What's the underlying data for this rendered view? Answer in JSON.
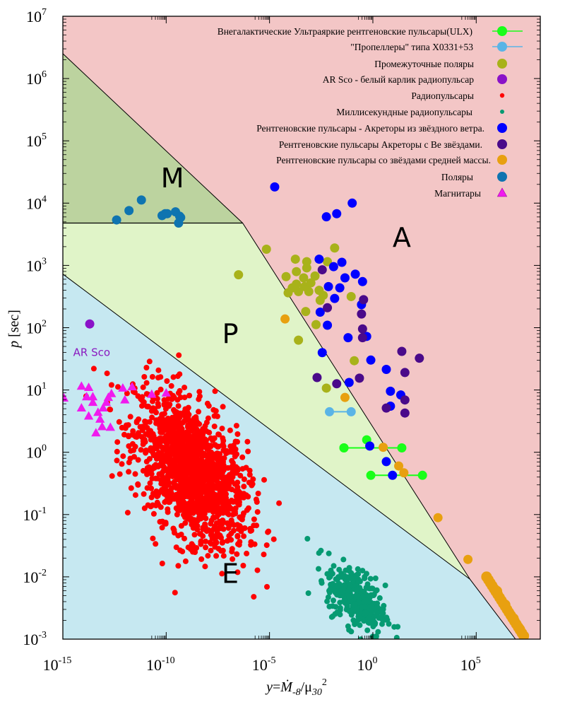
{
  "chart_data": {
    "type": "scatter",
    "title": "",
    "xlabel": "y=Ṁ-8/μ30²",
    "xlabel_parts": {
      "var": "y",
      "eq": "=",
      "mdot": "Ṁ",
      "sub1": "-8",
      "slash": "/",
      "mu": "μ",
      "sub2": "30",
      "sup": "2"
    },
    "ylabel": "p [sec]",
    "ylabel_parts": {
      "var": "p",
      "unit": " [sec]"
    },
    "xscale": "log",
    "yscale": "log",
    "xlim_log10": [
      -15,
      8.1
    ],
    "ylim_log10": [
      -3,
      7
    ],
    "x_ticks": [
      {
        "base": "10",
        "exp": "-15",
        "log10": -15
      },
      {
        "base": "10",
        "exp": "-10",
        "log10": -10
      },
      {
        "base": "10",
        "exp": "-5",
        "log10": -5
      },
      {
        "base": "10",
        "exp": "0",
        "log10": 0
      },
      {
        "base": "10",
        "exp": "5",
        "log10": 5
      }
    ],
    "y_ticks": [
      {
        "base": "10",
        "exp": "-3",
        "log10": -3
      },
      {
        "base": "10",
        "exp": "-2",
        "log10": -2
      },
      {
        "base": "10",
        "exp": "-1",
        "log10": -1
      },
      {
        "base": "10",
        "exp": "0",
        "log10": 0
      },
      {
        "base": "10",
        "exp": "1",
        "log10": 1
      },
      {
        "base": "10",
        "exp": "2",
        "log10": 2
      },
      {
        "base": "10",
        "exp": "3",
        "log10": 3
      },
      {
        "base": "10",
        "exp": "4",
        "log10": 4
      },
      {
        "base": "10",
        "exp": "5",
        "log10": 5
      },
      {
        "base": "10",
        "exp": "6",
        "log10": 6
      },
      {
        "base": "10",
        "exp": "7",
        "log10": 7
      }
    ],
    "grid": false,
    "legend_placement": "top-right",
    "regions": [
      {
        "label": "M",
        "name": "magnetic-inhibition",
        "color": "#bcd39f",
        "label_at_log10": [
          -9.7,
          4.4
        ]
      },
      {
        "label": "P",
        "name": "propeller",
        "color": "#e0f4c8",
        "label_at_log10": [
          -6.9,
          1.9
        ]
      },
      {
        "label": "A",
        "name": "accretor",
        "color": "#f3c6c6",
        "label_at_log10": [
          1.4,
          3.45
        ]
      },
      {
        "label": "E",
        "name": "ejector",
        "color": "#c6e8f1",
        "label_at_log10": [
          -6.9,
          -1.95
        ]
      }
    ],
    "boundaries": {
      "upper_line_log10": [
        [
          -15,
          6.4
        ],
        [
          -6.3,
          3.68
        ],
        [
          4.7,
          -2.04
        ]
      ],
      "lower_line_log10": [
        [
          -15,
          2.86
        ],
        [
          4.7,
          -2.04
        ],
        [
          6.9,
          -3
        ]
      ],
      "m_line_log10": [
        [
          -15,
          3.68
        ],
        [
          -6.3,
          3.68
        ]
      ]
    },
    "annotations": [
      {
        "text": "AR Sco",
        "at_log10": [
          -14.5,
          1.6
        ],
        "color": "#8a1ac0"
      }
    ],
    "series": [
      {
        "name": "Внегалактические Ультраяркие рентгеновские пульсары(ULX)",
        "key": "ulx",
        "color": "#19ff19",
        "marker": "circle-line",
        "points_log10": [
          [
            -1.4,
            0.07
          ],
          [
            -0.3,
            0.2
          ]
        ],
        "segments_log10": [
          [
            [
              -1.4,
              0.07
            ],
            [
              1.4,
              0.07
            ]
          ],
          [
            [
              -0.1,
              -0.37
            ],
            [
              2.4,
              -0.37
            ]
          ]
        ]
      },
      {
        "name": "\"Пропеллеры\" типа  X0331+53",
        "key": "propeller",
        "color": "#5ab4e6",
        "marker": "circle-line",
        "points_log10": [],
        "segments_log10": [
          [
            [
              -2.1,
              0.65
            ],
            [
              -1.05,
              0.65
            ]
          ]
        ]
      },
      {
        "name": "Промежуточные поляры",
        "key": "ip",
        "color": "#a8b21a",
        "marker": "circle",
        "points_log10": [
          [
            -5.15,
            3.26
          ],
          [
            -1.85,
            3.28
          ],
          [
            -6.5,
            2.85
          ],
          [
            -3.75,
            3.1
          ],
          [
            -3.2,
            3.06
          ],
          [
            -2.2,
            3.06
          ],
          [
            -3.7,
            2.9
          ],
          [
            -3.2,
            2.96
          ],
          [
            -4.2,
            2.82
          ],
          [
            -2.8,
            2.83
          ],
          [
            -3.35,
            2.8
          ],
          [
            -3.7,
            2.7
          ],
          [
            -3.3,
            2.66
          ],
          [
            -3.0,
            2.72
          ],
          [
            -3.9,
            2.64
          ],
          [
            -4.1,
            2.56
          ],
          [
            -3.6,
            2.58
          ],
          [
            -3.1,
            2.58
          ],
          [
            -2.6,
            2.6
          ],
          [
            -2.4,
            2.52
          ],
          [
            -1.05,
            2.5
          ],
          [
            -2.55,
            2.44
          ],
          [
            -3.25,
            2.26
          ],
          [
            -2.75,
            2.05
          ],
          [
            -3.6,
            1.8
          ],
          [
            -0.9,
            1.47
          ],
          [
            -2.25,
            1.03
          ]
        ]
      },
      {
        "name": "AR Sco - белый карлик радиопульсар",
        "key": "arsco",
        "color": "#8a12c8",
        "marker": "circle",
        "points_log10": [
          [
            -13.7,
            2.06
          ]
        ]
      },
      {
        "name": "Радиопульсары",
        "key": "radio",
        "color": "#ff0000",
        "marker": "small-dot",
        "cluster": {
          "center_log10": [
            -8.8,
            -0.3
          ],
          "spread_log10": [
            1.35,
            0.55
          ],
          "count": 1500
        }
      },
      {
        "name": "Миллисекундные радиопульсары",
        "key": "msp",
        "color": "#069a72",
        "marker": "small-dot",
        "cluster": {
          "center_log10": [
            -0.8,
            -2.35
          ],
          "spread_log10": [
            0.7,
            0.25
          ],
          "count": 320
        }
      },
      {
        "name": "Рентгеновские пульсары - Акреторы из звёздного ветра.",
        "key": "wind",
        "color": "#0000ff",
        "marker": "circle",
        "points_log10": [
          [
            -4.75,
            4.26
          ],
          [
            -1.0,
            4.0
          ],
          [
            -2.25,
            3.78
          ],
          [
            -1.75,
            3.83
          ],
          [
            -2.6,
            3.1
          ],
          [
            -1.9,
            2.98
          ],
          [
            -1.5,
            3.05
          ],
          [
            -1.35,
            2.8
          ],
          [
            -0.85,
            2.86
          ],
          [
            -0.5,
            2.74
          ],
          [
            -2.15,
            2.66
          ],
          [
            -1.6,
            2.64
          ],
          [
            -1.85,
            2.47
          ],
          [
            -0.55,
            2.37
          ],
          [
            -2.55,
            2.25
          ],
          [
            -2.2,
            2.04
          ],
          [
            -1.2,
            1.84
          ],
          [
            -0.3,
            1.86
          ],
          [
            -2.45,
            1.6
          ],
          [
            -0.1,
            1.48
          ],
          [
            0.65,
            1.33
          ],
          [
            -1.15,
            1.12
          ],
          [
            0.85,
            0.98
          ],
          [
            1.35,
            0.92
          ],
          [
            0.85,
            0.74
          ],
          [
            -0.15,
            0.1
          ],
          [
            0.65,
            -0.15
          ],
          [
            0.95,
            -0.37
          ]
        ]
      },
      {
        "name": "Рентгеновские пульсары Акреторы с Ве звёздами.",
        "key": "be",
        "color": "#4a0a8a",
        "marker": "circle",
        "points_log10": [
          [
            -2.45,
            2.93
          ],
          [
            -0.45,
            2.45
          ],
          [
            -2.2,
            2.32
          ],
          [
            -0.55,
            2.22
          ],
          [
            -0.5,
            1.98
          ],
          [
            -0.5,
            1.84
          ],
          [
            1.4,
            1.62
          ],
          [
            2.25,
            1.51
          ],
          [
            1.55,
            1.28
          ],
          [
            -2.7,
            1.2
          ],
          [
            -1.75,
            1.1
          ],
          [
            -0.65,
            1.19
          ],
          [
            0.65,
            0.71
          ],
          [
            1.55,
            0.63
          ],
          [
            1.55,
            0.84
          ]
        ]
      },
      {
        "name": "Рентгеновские пульсары со звёздами средней массы.",
        "key": "intermediate",
        "color": "#e8a010",
        "marker": "circle",
        "points_log10": [
          [
            -4.25,
            2.14
          ],
          [
            -1.35,
            0.88
          ],
          [
            0.5,
            0.08
          ],
          [
            1.25,
            -0.22
          ],
          [
            1.5,
            -0.33
          ],
          [
            3.15,
            -1.05
          ],
          [
            4.6,
            -1.72
          ],
          [
            5.5,
            -2.0
          ],
          [
            6.0,
            -2.23
          ],
          [
            6.4,
            -2.45
          ],
          [
            6.8,
            -2.67
          ],
          [
            7.1,
            -2.84
          ],
          [
            7.3,
            -2.95
          ]
        ]
      },
      {
        "name": "Поляры",
        "key": "polar",
        "color": "#0f74b0",
        "marker": "circle",
        "points_log10": [
          [
            -12.4,
            3.73
          ],
          [
            -11.8,
            3.88
          ],
          [
            -11.2,
            4.05
          ],
          [
            -10.2,
            3.8
          ],
          [
            -10.05,
            3.83
          ],
          [
            -9.95,
            3.83
          ],
          [
            -9.55,
            3.86
          ],
          [
            -9.35,
            3.79
          ],
          [
            -9.4,
            3.68
          ],
          [
            -9.3,
            3.77
          ]
        ]
      },
      {
        "name": "Магнитары",
        "key": "magnetar",
        "color": "#f01aee",
        "marker": "triangle",
        "points_log10": [
          [
            -14.95,
            0.87
          ],
          [
            -14.1,
            1.06
          ],
          [
            -13.75,
            1.04
          ],
          [
            -13.85,
            0.89
          ],
          [
            -13.55,
            0.89
          ],
          [
            -13.55,
            0.8
          ],
          [
            -14.1,
            0.71
          ],
          [
            -13.75,
            0.58
          ],
          [
            -13.3,
            0.64
          ],
          [
            -13.05,
            0.71
          ],
          [
            -12.9,
            0.8
          ],
          [
            -12.8,
            0.88
          ],
          [
            -12.65,
            0.94
          ],
          [
            -12.1,
            1.03
          ],
          [
            -11.65,
            1.05
          ],
          [
            -12.0,
            0.84
          ],
          [
            -10.7,
            0.93
          ],
          [
            -10.0,
            0.95
          ],
          [
            -13.4,
            0.31
          ],
          [
            -13.1,
            0.41
          ],
          [
            -12.7,
            0.4
          ],
          [
            -13.2,
            0.53
          ]
        ]
      }
    ]
  }
}
